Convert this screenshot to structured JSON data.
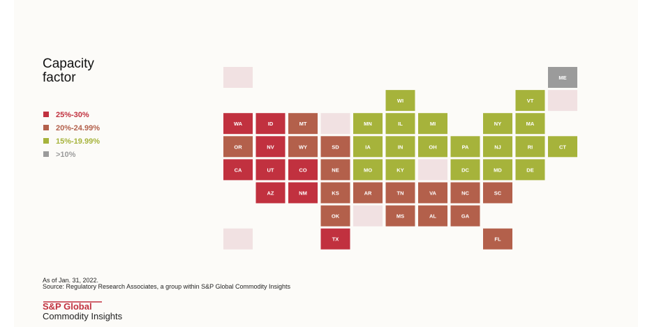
{
  "title_lines": [
    "Capacity",
    "factor"
  ],
  "legend": [
    {
      "label": "25%-30%",
      "color": "#c1313f"
    },
    {
      "label": "20%-24.99%",
      "color": "#b3604b"
    },
    {
      "label": "15%-19.99%",
      "color": "#a6b33b"
    },
    {
      "label": ">10%",
      "color": "#9b9b9b"
    }
  ],
  "tiles": [
    {
      "label": "ME",
      "category": 3
    },
    {
      "label": "WI",
      "category": 2
    },
    {
      "label": "VT",
      "category": 2
    },
    {
      "label": "WA",
      "category": 0
    },
    {
      "label": "ID",
      "category": 0
    },
    {
      "label": "MT",
      "category": 1
    },
    {
      "label": "MN",
      "category": 2
    },
    {
      "label": "IL",
      "category": 2
    },
    {
      "label": "MI",
      "category": 2
    },
    {
      "label": "NY",
      "category": 2
    },
    {
      "label": "MA",
      "category": 2
    },
    {
      "label": "OR",
      "category": 1
    },
    {
      "label": "NV",
      "category": 0
    },
    {
      "label": "WY",
      "category": 1
    },
    {
      "label": "SD",
      "category": 1
    },
    {
      "label": "IA",
      "category": 2
    },
    {
      "label": "IN",
      "category": 2
    },
    {
      "label": "OH",
      "category": 2
    },
    {
      "label": "PA",
      "category": 2
    },
    {
      "label": "NJ",
      "category": 2
    },
    {
      "label": "RI",
      "category": 2
    },
    {
      "label": "CT",
      "category": 2
    },
    {
      "label": "CA",
      "category": 0
    },
    {
      "label": "UT",
      "category": 0
    },
    {
      "label": "CO",
      "category": 0
    },
    {
      "label": "NE",
      "category": 1
    },
    {
      "label": "MO",
      "category": 2
    },
    {
      "label": "KY",
      "category": 2
    },
    {
      "label": "DC",
      "category": 2
    },
    {
      "label": "MD",
      "category": 2
    },
    {
      "label": "DE",
      "category": 2
    },
    {
      "label": "AZ",
      "category": 0
    },
    {
      "label": "NM",
      "category": 0
    },
    {
      "label": "KS",
      "category": 1
    },
    {
      "label": "AR",
      "category": 1
    },
    {
      "label": "TN",
      "category": 1
    },
    {
      "label": "VA",
      "category": 1
    },
    {
      "label": "NC",
      "category": 1
    },
    {
      "label": "SC",
      "category": 1
    },
    {
      "label": "OK",
      "category": 1
    },
    {
      "label": "MS",
      "category": 1
    },
    {
      "label": "AL",
      "category": 1
    },
    {
      "label": "GA",
      "category": 1
    },
    {
      "label": "TX",
      "category": 0
    },
    {
      "label": "FL",
      "category": 1
    }
  ],
  "notes": [
    "As of Jan. 31, 2022.",
    "Source: Regulatory Research Associates, a group within S&P Global Commodity Insights"
  ],
  "brand": {
    "name": "S&P Global",
    "sub": "Commodity Insights"
  }
}
